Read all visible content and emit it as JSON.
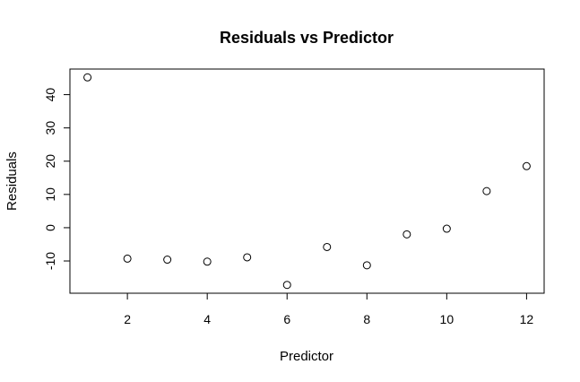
{
  "chart_data": {
    "type": "scatter",
    "title": "Residuals vs Predictor",
    "xlabel": "Predictor",
    "ylabel": "Residuals",
    "x": [
      1,
      2,
      3,
      4,
      5,
      6,
      7,
      8,
      9,
      10,
      11,
      12
    ],
    "y": [
      45.2,
      -9.3,
      -9.6,
      -10.2,
      -8.9,
      -17.2,
      -5.8,
      -11.3,
      -2.0,
      -0.3,
      11.0,
      18.5
    ],
    "xlim": [
      0.56,
      12.44
    ],
    "ylim": [
      -19.7,
      47.7
    ],
    "xticks": [
      2,
      4,
      6,
      8,
      10,
      12
    ],
    "yticks": [
      -10,
      0,
      10,
      20,
      30,
      40
    ],
    "xtick_labels": [
      "2",
      "4",
      "6",
      "8",
      "10",
      "12"
    ],
    "ytick_labels": [
      "-10",
      "0",
      "10",
      "20",
      "30",
      "40"
    ],
    "grid": false,
    "legend": "none",
    "marker": "open-circle",
    "colors": {
      "points": "#000000",
      "axes": "#000000",
      "background": "#ffffff"
    }
  }
}
